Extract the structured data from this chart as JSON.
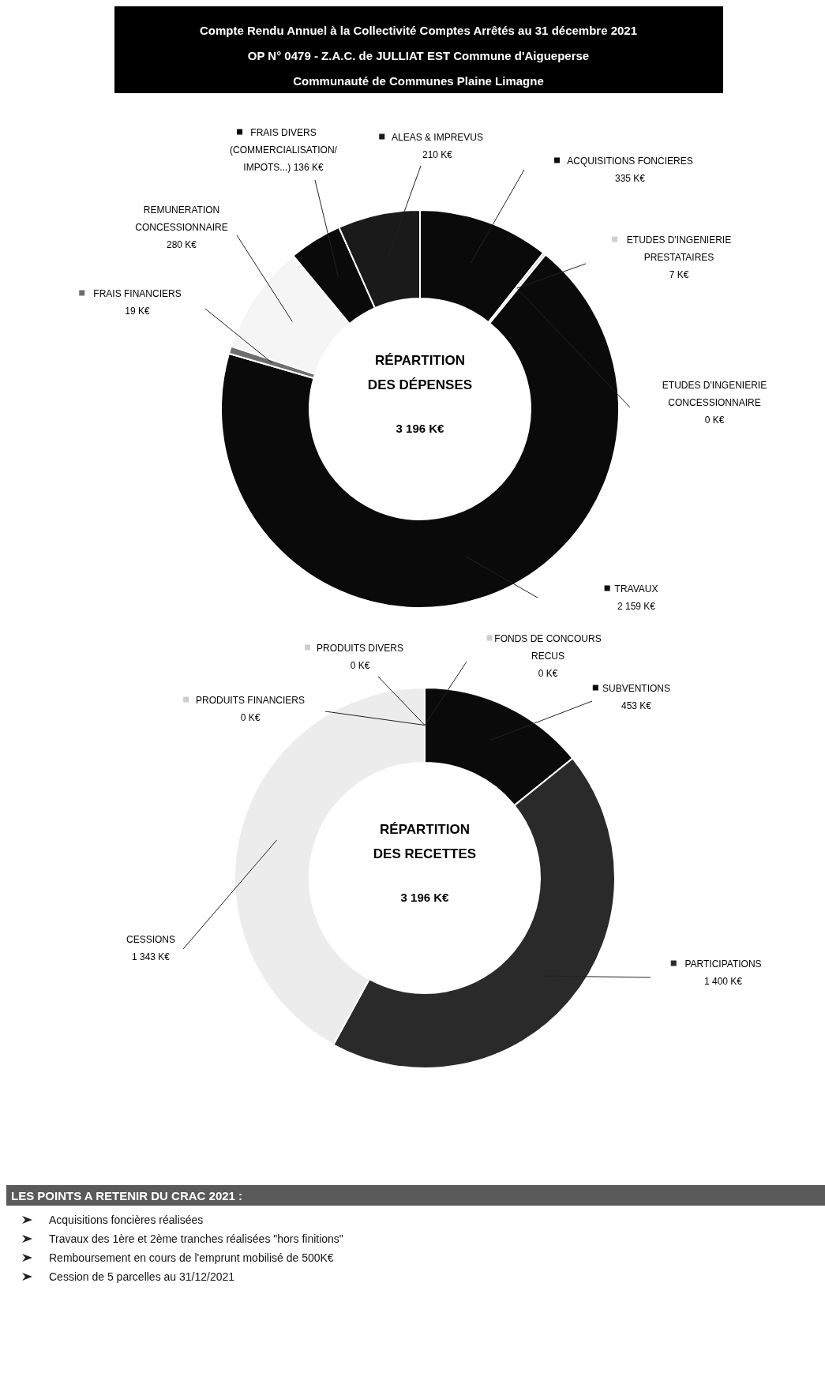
{
  "chart_data": [
    {
      "type": "other",
      "title": "Compte Rendu Annuel à la Collectivité Comptes Arrêtés au 31 décembre 2021",
      "annotations": [
        "OP N° 0479 - Z.A.C. de JULLIAT EST Commune d'Aigueperse",
        "Communauté de Communes Plaine Limagne"
      ]
    },
    {
      "type": "donut",
      "title": "RÉPARTITION DES DÉPENSES",
      "subtitle": "3 196 K€",
      "categories": [
        "ACQUISITIONS FONCIERES",
        "ETUDES D'INGENIERIE PRESTATAIRES",
        "ETUDES D'INGENIERIE CONCESSIONNAIRE",
        "TRAVAUX",
        "FRAIS FINANCIERS",
        "REMUNERATION CONCESSIONNAIRE",
        "FRAIS DIVERS (COMMERCIALISATION/ IMPOTS...)",
        "ALEAS & IMPREVUS"
      ],
      "values": [
        335,
        7,
        0,
        2159,
        19,
        280,
        136,
        210
      ],
      "value_labels": [
        "335 K€",
        "7 K€",
        "0 K€",
        "2 159 K€",
        "19 K€",
        "280 K€",
        "136 K€",
        "210 K€"
      ],
      "colors": [
        "#0a0a0a",
        "#d0d0d0",
        "#808080",
        "#0a0a0a",
        "#6e6e6e",
        "#f5f5f5",
        "#0a0a0a",
        "#1a1a1a"
      ],
      "legend": "top"
    },
    {
      "type": "donut",
      "title": "RÉPARTITION DES RECETTES",
      "subtitle": "3 196 K€",
      "categories": [
        "SUBVENTIONS",
        "PARTICIPATIONS",
        "CESSIONS",
        "PRODUITS FINANCIERS",
        "PRODUITS DIVERS",
        "FONDS DE CONCOURS RECUS"
      ],
      "values": [
        453,
        1400,
        1343,
        0,
        0,
        0
      ],
      "value_labels": [
        "453 K€",
        "1 400 K€",
        "1 343 K€",
        "0 K€",
        "0 K€",
        "0 K€"
      ],
      "colors": [
        "#0a0a0a",
        "#2a2a2a",
        "#ececec",
        "#cccccc",
        "#cccccc",
        "#cccccc"
      ],
      "legend": "top"
    },
    {
      "type": "other",
      "title": "LES POINTS A RETENIR DU CRAC 2021 :",
      "annotations": [
        "Acquisitions foncières réalisées",
        "Travaux des 1ère et 2ème tranches réalisées \"hors finitions\"",
        "Remboursement en cours de l'emprunt mobilisé de 500K€",
        "Cession de 5 parcelles au 31/12/2021"
      ]
    }
  ]
}
